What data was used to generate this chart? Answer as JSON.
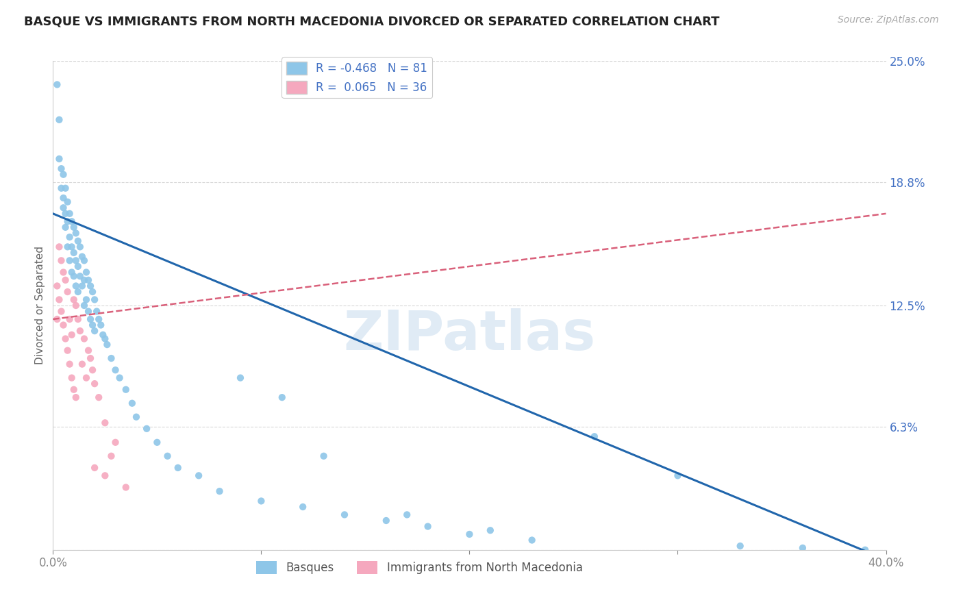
{
  "title": "BASQUE VS IMMIGRANTS FROM NORTH MACEDONIA DIVORCED OR SEPARATED CORRELATION CHART",
  "source": "Source: ZipAtlas.com",
  "ylabel": "Divorced or Separated",
  "xlim": [
    0.0,
    0.4
  ],
  "ylim": [
    0.0,
    0.25
  ],
  "xtick_labels": [
    "0.0%",
    "",
    "",
    "",
    "40.0%"
  ],
  "xtick_vals": [
    0.0,
    0.1,
    0.2,
    0.3,
    0.4
  ],
  "ytick_vals_right": [
    0.0,
    0.063,
    0.125,
    0.188,
    0.25
  ],
  "ytick_labels_right": [
    "",
    "6.3%",
    "12.5%",
    "18.8%",
    "25.0%"
  ],
  "legend_R1": "-0.468",
  "legend_N1": "81",
  "legend_R2": "0.065",
  "legend_N2": "36",
  "blue_color": "#8ec6e8",
  "pink_color": "#f5a8be",
  "blue_line_color": "#2166ac",
  "pink_line_color": "#d9607a",
  "watermark_text": "ZIPatlas",
  "blue_line_x0": 0.0,
  "blue_line_y0": 0.172,
  "blue_line_x1": 0.4,
  "blue_line_y1": -0.005,
  "pink_line_x0": 0.0,
  "pink_line_y0": 0.118,
  "pink_line_x1": 0.4,
  "pink_line_y1": 0.172,
  "basque_x": [
    0.002,
    0.003,
    0.003,
    0.004,
    0.004,
    0.005,
    0.005,
    0.005,
    0.006,
    0.006,
    0.006,
    0.007,
    0.007,
    0.007,
    0.008,
    0.008,
    0.008,
    0.009,
    0.009,
    0.009,
    0.01,
    0.01,
    0.01,
    0.011,
    0.011,
    0.011,
    0.012,
    0.012,
    0.012,
    0.013,
    0.013,
    0.014,
    0.014,
    0.015,
    0.015,
    0.015,
    0.016,
    0.016,
    0.017,
    0.017,
    0.018,
    0.018,
    0.019,
    0.019,
    0.02,
    0.02,
    0.021,
    0.022,
    0.023,
    0.024,
    0.025,
    0.026,
    0.028,
    0.03,
    0.032,
    0.035,
    0.038,
    0.04,
    0.045,
    0.05,
    0.055,
    0.06,
    0.07,
    0.08,
    0.09,
    0.1,
    0.11,
    0.12,
    0.14,
    0.16,
    0.18,
    0.2,
    0.23,
    0.26,
    0.3,
    0.33,
    0.36,
    0.39,
    0.13,
    0.17,
    0.21
  ],
  "basque_y": [
    0.238,
    0.22,
    0.2,
    0.195,
    0.185,
    0.18,
    0.192,
    0.175,
    0.185,
    0.172,
    0.165,
    0.178,
    0.168,
    0.155,
    0.172,
    0.16,
    0.148,
    0.168,
    0.155,
    0.142,
    0.165,
    0.152,
    0.14,
    0.162,
    0.148,
    0.135,
    0.158,
    0.145,
    0.132,
    0.155,
    0.14,
    0.15,
    0.135,
    0.148,
    0.138,
    0.125,
    0.142,
    0.128,
    0.138,
    0.122,
    0.135,
    0.118,
    0.132,
    0.115,
    0.128,
    0.112,
    0.122,
    0.118,
    0.115,
    0.11,
    0.108,
    0.105,
    0.098,
    0.092,
    0.088,
    0.082,
    0.075,
    0.068,
    0.062,
    0.055,
    0.048,
    0.042,
    0.038,
    0.03,
    0.088,
    0.025,
    0.078,
    0.022,
    0.018,
    0.015,
    0.012,
    0.008,
    0.005,
    0.058,
    0.038,
    0.002,
    0.001,
    0.0,
    0.048,
    0.018,
    0.01
  ],
  "mac_x": [
    0.002,
    0.002,
    0.003,
    0.003,
    0.004,
    0.004,
    0.005,
    0.005,
    0.006,
    0.006,
    0.007,
    0.007,
    0.008,
    0.008,
    0.009,
    0.009,
    0.01,
    0.01,
    0.011,
    0.011,
    0.012,
    0.013,
    0.014,
    0.015,
    0.016,
    0.017,
    0.018,
    0.019,
    0.02,
    0.022,
    0.025,
    0.028,
    0.03,
    0.02,
    0.025,
    0.035
  ],
  "mac_y": [
    0.135,
    0.118,
    0.155,
    0.128,
    0.148,
    0.122,
    0.142,
    0.115,
    0.138,
    0.108,
    0.132,
    0.102,
    0.118,
    0.095,
    0.11,
    0.088,
    0.128,
    0.082,
    0.125,
    0.078,
    0.118,
    0.112,
    0.095,
    0.108,
    0.088,
    0.102,
    0.098,
    0.092,
    0.085,
    0.078,
    0.065,
    0.048,
    0.055,
    0.042,
    0.038,
    0.032
  ]
}
